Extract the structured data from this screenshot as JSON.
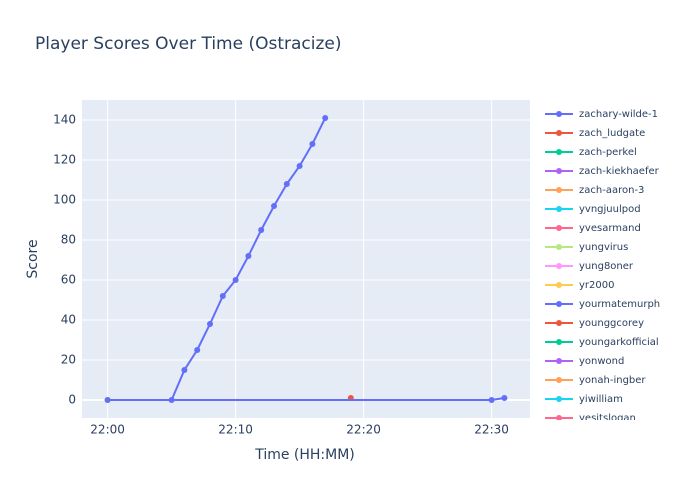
{
  "chart_data": {
    "type": "line",
    "title": "Player Scores Over Time (Ostracize)",
    "x_label": "Time (HH:MM)",
    "y_label": "Score",
    "xlim": [
      "21:58",
      "22:33"
    ],
    "xticks": [
      "22:00",
      "22:10",
      "22:20",
      "22:30"
    ],
    "ylim": [
      -9,
      150
    ],
    "yticks": [
      0,
      20,
      40,
      60,
      80,
      100,
      120,
      140
    ],
    "grid": true,
    "series": [
      {
        "name": "zachary-wilde-1",
        "color": "#636efa",
        "x": [
          "22:05",
          "22:06",
          "22:07",
          "22:08",
          "22:09",
          "22:10",
          "22:11",
          "22:12",
          "22:13",
          "22:14",
          "22:15",
          "22:16",
          "22:17"
        ],
        "values": [
          0,
          15,
          25,
          38,
          52,
          60,
          72,
          85,
          97,
          108,
          117,
          128,
          141
        ]
      },
      {
        "name": "zach_ludgate",
        "color": "#EF553B",
        "x": [
          "22:19"
        ],
        "values": [
          1
        ]
      },
      {
        "name": "zach-perkel",
        "color": "#00cc96",
        "x": [],
        "values": []
      },
      {
        "name": "zach-kiekhaefer",
        "color": "#ab63fa",
        "x": [],
        "values": []
      },
      {
        "name": "zach-aaron-3",
        "color": "#FFA15A",
        "x": [
          "22:00"
        ],
        "values": [
          0
        ]
      },
      {
        "name": "yvngjuulpod",
        "color": "#19d3f3",
        "x": [],
        "values": []
      },
      {
        "name": "yvesarmand",
        "color": "#FF6692",
        "x": [],
        "values": []
      },
      {
        "name": "yungvirus",
        "color": "#B6E880",
        "x": [],
        "values": []
      },
      {
        "name": "yung8oner",
        "color": "#FF97FF",
        "x": [],
        "values": []
      },
      {
        "name": "yr2000",
        "color": "#FECB52",
        "x": [
          "22:00"
        ],
        "values": [
          0
        ]
      },
      {
        "name": "yourmatemurph",
        "color": "#636efa",
        "x": [
          "22:00",
          "22:30",
          "22:31"
        ],
        "values": [
          0,
          0,
          1
        ]
      },
      {
        "name": "younggcorey",
        "color": "#EF553B",
        "x": [],
        "values": []
      },
      {
        "name": "youngarkofficial",
        "color": "#00cc96",
        "x": [],
        "values": []
      },
      {
        "name": "yonwond",
        "color": "#ab63fa",
        "x": [],
        "values": []
      },
      {
        "name": "yonah-ingber",
        "color": "#FFA15A",
        "x": [],
        "values": []
      },
      {
        "name": "yiwilliam",
        "color": "#19d3f3",
        "x": [],
        "values": []
      },
      {
        "name": "yesitslogan",
        "color": "#FF6692",
        "x": [],
        "values": []
      }
    ]
  }
}
